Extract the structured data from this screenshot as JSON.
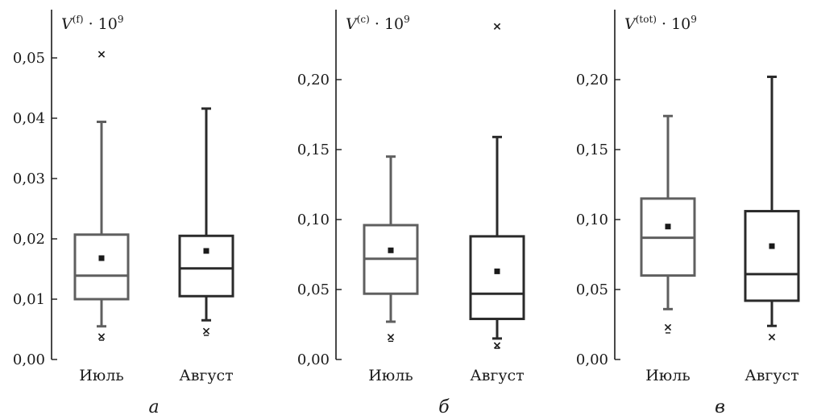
{
  "chart_data": [
    {
      "type": "box",
      "panel_label": "а",
      "title": {
        "base": "V",
        "sup": "(f)",
        "suffix": " · 10",
        "exp": "9"
      },
      "ylim": [
        0,
        0.058
      ],
      "yticks": [
        0,
        0.01,
        0.02,
        0.03,
        0.04,
        0.05
      ],
      "ytick_labels": [
        "0,00",
        "0,01",
        "0,02",
        "0,03",
        "0,04",
        "0,05"
      ],
      "categories": [
        "Июль",
        "Август"
      ],
      "colors": [
        "#5f5f5f",
        "#2a2a2a"
      ],
      "boxes": [
        {
          "whisker_low": 0.0055,
          "q1": 0.01,
          "median": 0.0139,
          "q3": 0.0207,
          "whisker_high": 0.0394,
          "mean": 0.0168,
          "max_marker": 0.0506,
          "min_marker": 0.0038,
          "min_dash": 0.0032
        },
        {
          "whisker_low": 0.0065,
          "q1": 0.0105,
          "median": 0.0151,
          "q3": 0.0205,
          "whisker_high": 0.0416,
          "mean": 0.018,
          "max_marker": null,
          "min_marker": 0.0047,
          "min_dash": 0.004
        }
      ]
    },
    {
      "type": "box",
      "panel_label": "б",
      "title": {
        "base": "V",
        "sup": "(c)",
        "suffix": " · 10",
        "exp": "9"
      },
      "ylim": [
        0,
        0.25
      ],
      "yticks": [
        0,
        0.05,
        0.1,
        0.15,
        0.2
      ],
      "ytick_labels": [
        "0,00",
        "0,05",
        "0,10",
        "0,15",
        "0,20"
      ],
      "categories": [
        "Июль",
        "Август"
      ],
      "colors": [
        "#5f5f5f",
        "#2a2a2a"
      ],
      "boxes": [
        {
          "whisker_low": 0.027,
          "q1": 0.047,
          "median": 0.072,
          "q3": 0.096,
          "whisker_high": 0.145,
          "mean": 0.078,
          "max_marker": null,
          "min_marker": 0.016,
          "min_dash": 0.013
        },
        {
          "whisker_low": 0.015,
          "q1": 0.029,
          "median": 0.047,
          "q3": 0.088,
          "whisker_high": 0.159,
          "mean": 0.063,
          "max_marker": 0.238,
          "min_marker": 0.01,
          "min_dash": 0.008
        }
      ]
    },
    {
      "type": "box",
      "panel_label": "в",
      "title": {
        "base": "V",
        "sup": "(tot)",
        "suffix": " · 10",
        "exp": "9"
      },
      "ylim": [
        0,
        0.25
      ],
      "yticks": [
        0,
        0.05,
        0.1,
        0.15,
        0.2
      ],
      "ytick_labels": [
        "0,00",
        "0,05",
        "0,10",
        "0,15",
        "0,20"
      ],
      "categories": [
        "Июль",
        "Август"
      ],
      "colors": [
        "#5f5f5f",
        "#2a2a2a"
      ],
      "boxes": [
        {
          "whisker_low": 0.036,
          "q1": 0.06,
          "median": 0.087,
          "q3": 0.115,
          "whisker_high": 0.174,
          "mean": 0.095,
          "max_marker": null,
          "min_marker": 0.023,
          "min_dash": 0.019
        },
        {
          "whisker_low": 0.024,
          "q1": 0.042,
          "median": 0.061,
          "q3": 0.106,
          "whisker_high": 0.202,
          "mean": 0.081,
          "max_marker": null,
          "min_marker": 0.016,
          "min_dash": null
        }
      ]
    }
  ]
}
